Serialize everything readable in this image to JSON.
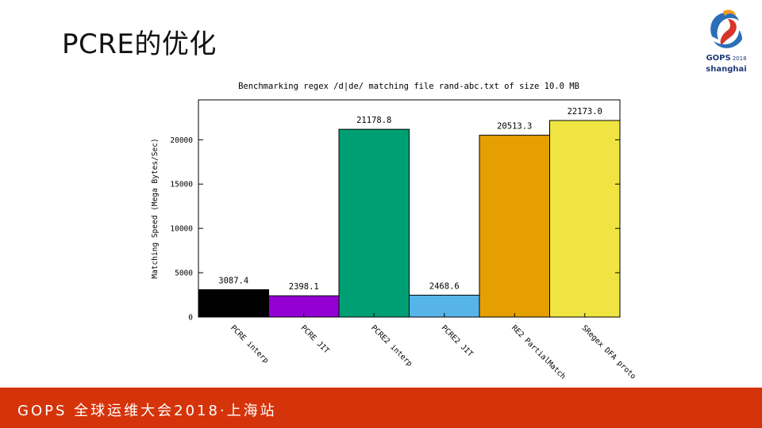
{
  "slide": {
    "title": "PCRE的优化",
    "footer": "GOPS 全球运维大会2018·上海站"
  },
  "logo": {
    "brand": "GOPS",
    "year": "2018",
    "city": "shanghai",
    "colors": {
      "blue": "#2a6fb8",
      "red": "#d8352a",
      "orange": "#f39a1e"
    }
  },
  "colors": {
    "footer_bg": "#d5340b",
    "bars": [
      "#000000",
      "#9400d3",
      "#009e73",
      "#56b4e9",
      "#e69f00",
      "#f0e442"
    ]
  },
  "chart_data": {
    "type": "bar",
    "title": "Benchmarking regex /d|de/ matching file rand-abc.txt of size 10.0 MB",
    "xlabel": "",
    "ylabel": "Matching Speed (Mega Bytes/Sec)",
    "categories": [
      "PCRE interp",
      "PCRE JIT",
      "PCRE2 interp",
      "PCRE2 JIT",
      "RE2 PartialMatch",
      "SRegex DFA proto"
    ],
    "values": [
      3087.4,
      2398.1,
      21178.8,
      2468.6,
      20513.3,
      22173.0
    ],
    "value_labels": [
      "3087.4",
      "2398.1",
      "21178.8",
      "2468.6",
      "20513.3",
      "22173.0"
    ],
    "yticks": [
      0,
      5000,
      10000,
      15000,
      20000
    ],
    "ylim": [
      0,
      24500
    ],
    "grid": false,
    "legend": "none"
  }
}
